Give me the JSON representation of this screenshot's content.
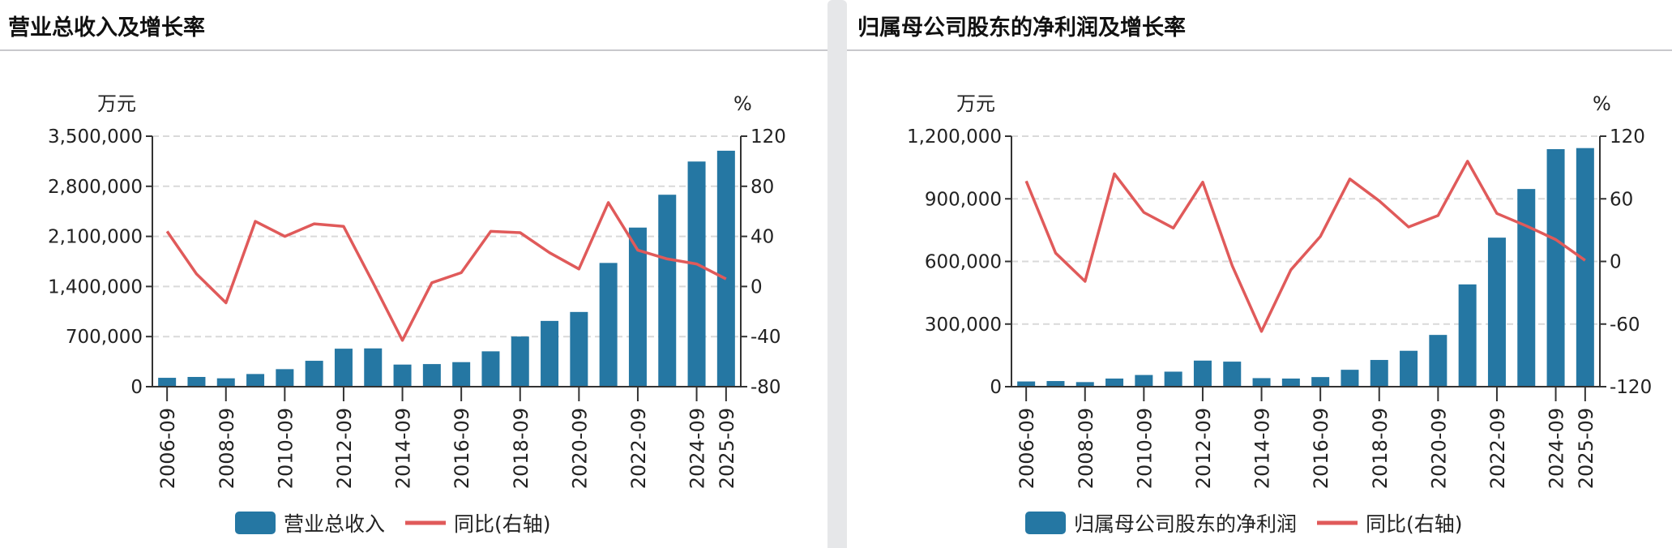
{
  "colors": {
    "bar": "#2577a3",
    "line": "#e05a5a",
    "grid": "#d9d9d9",
    "axis": "#333333"
  },
  "chart_data": [
    {
      "type": "bar+line",
      "title": "营业总收入及增长率",
      "left_unit": "万元",
      "right_unit": "%",
      "categories": [
        "2006-09",
        "2007-09",
        "2008-09",
        "2009-09",
        "2010-09",
        "2011-09",
        "2012-09",
        "2013-09",
        "2014-09",
        "2015-09",
        "2016-09",
        "2017-09",
        "2018-09",
        "2019-09",
        "2020-09",
        "2021-09",
        "2022-09",
        "2023-09",
        "2024-09",
        "2025-09"
      ],
      "x_tick_labels": [
        "2006-09",
        "2008-09",
        "2010-09",
        "2012-09",
        "2014-09",
        "2016-09",
        "2018-09",
        "2020-09",
        "2022-09",
        "2024-09",
        "2025-09"
      ],
      "y_left": {
        "ylim": [
          0,
          3500000
        ],
        "ticks": [
          0,
          700000,
          1400000,
          2100000,
          2800000,
          3500000
        ],
        "tick_labels": [
          "0",
          "700,000",
          "1,400,000",
          "2,100,000",
          "2,800,000",
          "3,500,000"
        ]
      },
      "y_right": {
        "ylim": [
          -80,
          120
        ],
        "ticks": [
          -80,
          -40,
          0,
          40,
          80,
          120
        ],
        "tick_labels": [
          "-80",
          "-40",
          "0",
          "40",
          "80",
          "120"
        ]
      },
      "grid": true,
      "legend_position": "bottom",
      "series": [
        {
          "name": "营业总收入",
          "type": "bar",
          "axis": "left",
          "values": [
            124000,
            136000,
            117000,
            177000,
            245000,
            362000,
            531000,
            535000,
            309000,
            316000,
            343000,
            494000,
            701000,
            919000,
            1044000,
            1729000,
            2223000,
            2682000,
            3146000,
            3297000
          ]
        },
        {
          "name": "同比(右轴)",
          "type": "line",
          "axis": "right",
          "values": [
            44,
            10,
            -13,
            52,
            40,
            50,
            48,
            3,
            -43,
            3,
            11,
            44,
            43,
            27,
            14,
            67,
            29,
            22,
            18,
            6
          ]
        }
      ]
    },
    {
      "type": "bar+line",
      "title": "归属母公司股东的净利润及增长率",
      "left_unit": "万元",
      "right_unit": "%",
      "categories": [
        "2006-09",
        "2007-09",
        "2008-09",
        "2009-09",
        "2010-09",
        "2011-09",
        "2012-09",
        "2013-09",
        "2014-09",
        "2015-09",
        "2016-09",
        "2017-09",
        "2018-09",
        "2019-09",
        "2020-09",
        "2021-09",
        "2022-09",
        "2023-09",
        "2024-09",
        "2025-09"
      ],
      "x_tick_labels": [
        "2006-09",
        "2008-09",
        "2010-09",
        "2012-09",
        "2014-09",
        "2016-09",
        "2018-09",
        "2020-09",
        "2022-09",
        "2024-09",
        "2025-09"
      ],
      "y_left": {
        "ylim": [
          0,
          1200000
        ],
        "ticks": [
          0,
          300000,
          600000,
          900000,
          1200000
        ],
        "tick_labels": [
          "0",
          "300,000",
          "600,000",
          "900,000",
          "1,200,000"
        ]
      },
      "y_right": {
        "ylim": [
          -120,
          120
        ],
        "ticks": [
          -120,
          -60,
          0,
          60,
          120
        ],
        "tick_labels": [
          "-120",
          "-60",
          "0",
          "60",
          "120"
        ]
      },
      "grid": true,
      "legend_position": "bottom",
      "series": [
        {
          "name": "归属母公司股东的净利润",
          "type": "bar",
          "axis": "left",
          "values": [
            25000,
            27000,
            22000,
            39000,
            56000,
            72000,
            125000,
            120000,
            41000,
            39000,
            46000,
            81000,
            128000,
            172000,
            248000,
            490000,
            714000,
            947000,
            1138000,
            1143000
          ]
        },
        {
          "name": "同比(右轴)",
          "type": "line",
          "axis": "right",
          "values": [
            77,
            8,
            -19,
            84,
            47,
            32,
            76,
            -4,
            -67,
            -8,
            24,
            79,
            58,
            33,
            44,
            96,
            46,
            34,
            21,
            1
          ]
        }
      ]
    }
  ]
}
